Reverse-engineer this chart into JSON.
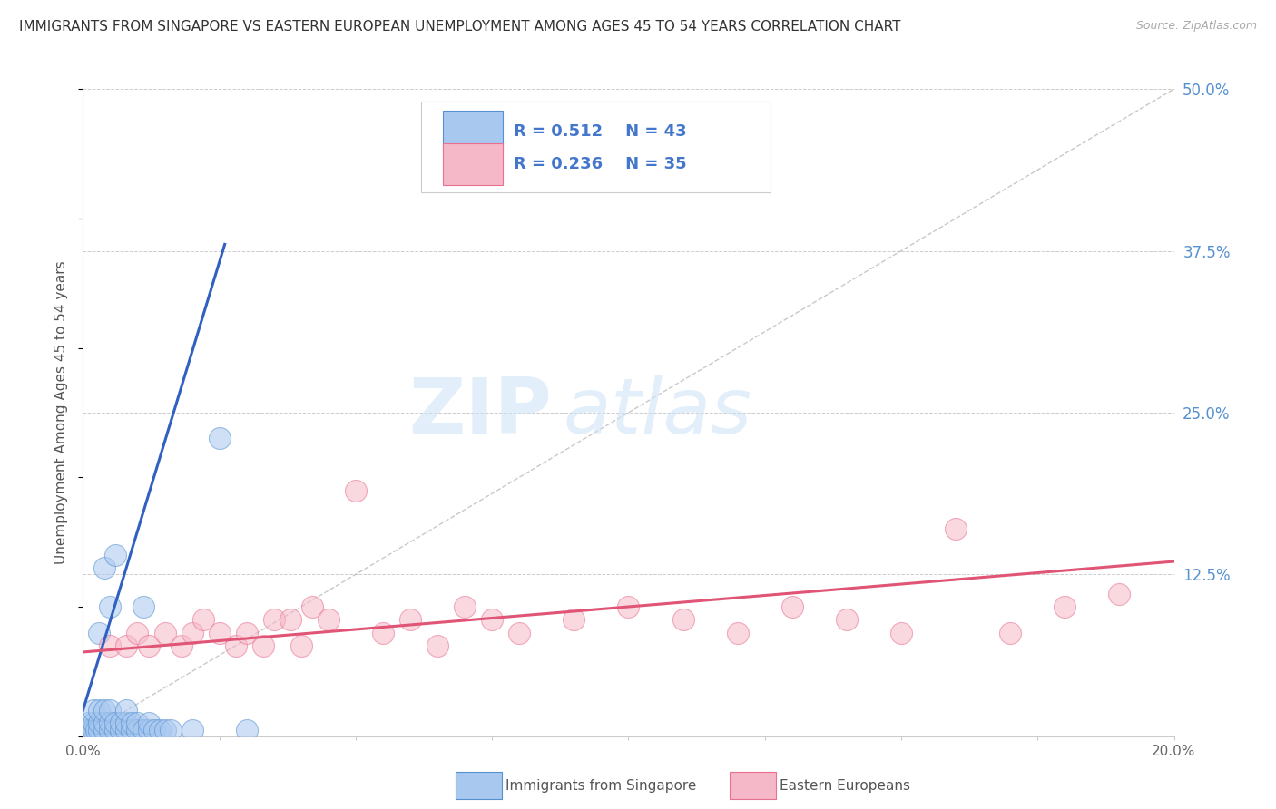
{
  "title": "IMMIGRANTS FROM SINGAPORE VS EASTERN EUROPEAN UNEMPLOYMENT AMONG AGES 45 TO 54 YEARS CORRELATION CHART",
  "source": "Source: ZipAtlas.com",
  "ylabel": "Unemployment Among Ages 45 to 54 years",
  "xlim": [
    0.0,
    0.2
  ],
  "ylim": [
    0.0,
    0.5
  ],
  "xticks": [
    0.0,
    0.025,
    0.05,
    0.075,
    0.1,
    0.125,
    0.15,
    0.175,
    0.2
  ],
  "xticklabels": [
    "0.0%",
    "",
    "",
    "",
    "",
    "",
    "",
    "",
    "20.0%"
  ],
  "ytick_positions": [
    0.0,
    0.125,
    0.25,
    0.375,
    0.5
  ],
  "yticklabels": [
    "",
    "12.5%",
    "25.0%",
    "37.5%",
    "50.0%"
  ],
  "legend_r1": "R = 0.512",
  "legend_n1": "N = 43",
  "legend_r2": "R = 0.236",
  "legend_n2": "N = 35",
  "color_singapore": "#a8c8f0",
  "color_eastern": "#f5b8c8",
  "color_singapore_edge": "#5590d0",
  "color_eastern_edge": "#e87090",
  "color_singapore_line": "#3060c0",
  "color_eastern_line": "#e05575",
  "color_diag": "#bbbbbb",
  "color_grid": "#cccccc",
  "color_title": "#333333",
  "color_source": "#aaaaaa",
  "color_ytick": "#5590d0",
  "color_legend_text": "#4477cc",
  "watermark_color": "#d0e4f5",
  "watermark": "ZIPatlas",
  "singapore_x": [
    0.0005,
    0.001,
    0.001,
    0.0015,
    0.002,
    0.002,
    0.002,
    0.0025,
    0.003,
    0.003,
    0.003,
    0.003,
    0.004,
    0.004,
    0.004,
    0.004,
    0.005,
    0.005,
    0.005,
    0.005,
    0.006,
    0.006,
    0.006,
    0.007,
    0.007,
    0.008,
    0.008,
    0.008,
    0.009,
    0.009,
    0.01,
    0.01,
    0.011,
    0.011,
    0.012,
    0.012,
    0.013,
    0.014,
    0.015,
    0.016,
    0.02,
    0.025,
    0.03
  ],
  "singapore_y": [
    0.005,
    0.005,
    0.01,
    0.005,
    0.005,
    0.01,
    0.02,
    0.005,
    0.005,
    0.01,
    0.02,
    0.08,
    0.005,
    0.01,
    0.02,
    0.13,
    0.005,
    0.01,
    0.02,
    0.1,
    0.005,
    0.01,
    0.14,
    0.005,
    0.01,
    0.005,
    0.01,
    0.02,
    0.005,
    0.01,
    0.005,
    0.01,
    0.005,
    0.1,
    0.005,
    0.01,
    0.005,
    0.005,
    0.005,
    0.005,
    0.005,
    0.23,
    0.005
  ],
  "eastern_x": [
    0.005,
    0.008,
    0.01,
    0.012,
    0.015,
    0.018,
    0.02,
    0.022,
    0.025,
    0.028,
    0.03,
    0.033,
    0.035,
    0.038,
    0.04,
    0.042,
    0.045,
    0.05,
    0.055,
    0.06,
    0.065,
    0.07,
    0.075,
    0.08,
    0.09,
    0.1,
    0.11,
    0.12,
    0.13,
    0.14,
    0.15,
    0.16,
    0.17,
    0.18,
    0.19
  ],
  "eastern_y": [
    0.07,
    0.07,
    0.08,
    0.07,
    0.08,
    0.07,
    0.08,
    0.09,
    0.08,
    0.07,
    0.08,
    0.07,
    0.09,
    0.09,
    0.07,
    0.1,
    0.09,
    0.19,
    0.08,
    0.09,
    0.07,
    0.1,
    0.09,
    0.08,
    0.09,
    0.1,
    0.09,
    0.08,
    0.1,
    0.09,
    0.08,
    0.16,
    0.08,
    0.1,
    0.11
  ],
  "sg_line_x0": 0.0,
  "sg_line_y0": 0.02,
  "sg_line_x1": 0.026,
  "sg_line_y1": 0.38,
  "ee_line_x0": 0.0,
  "ee_line_y0": 0.065,
  "ee_line_x1": 0.2,
  "ee_line_y1": 0.135,
  "background_color": "#ffffff",
  "fig_width": 14.06,
  "fig_height": 8.92,
  "dpi": 100
}
